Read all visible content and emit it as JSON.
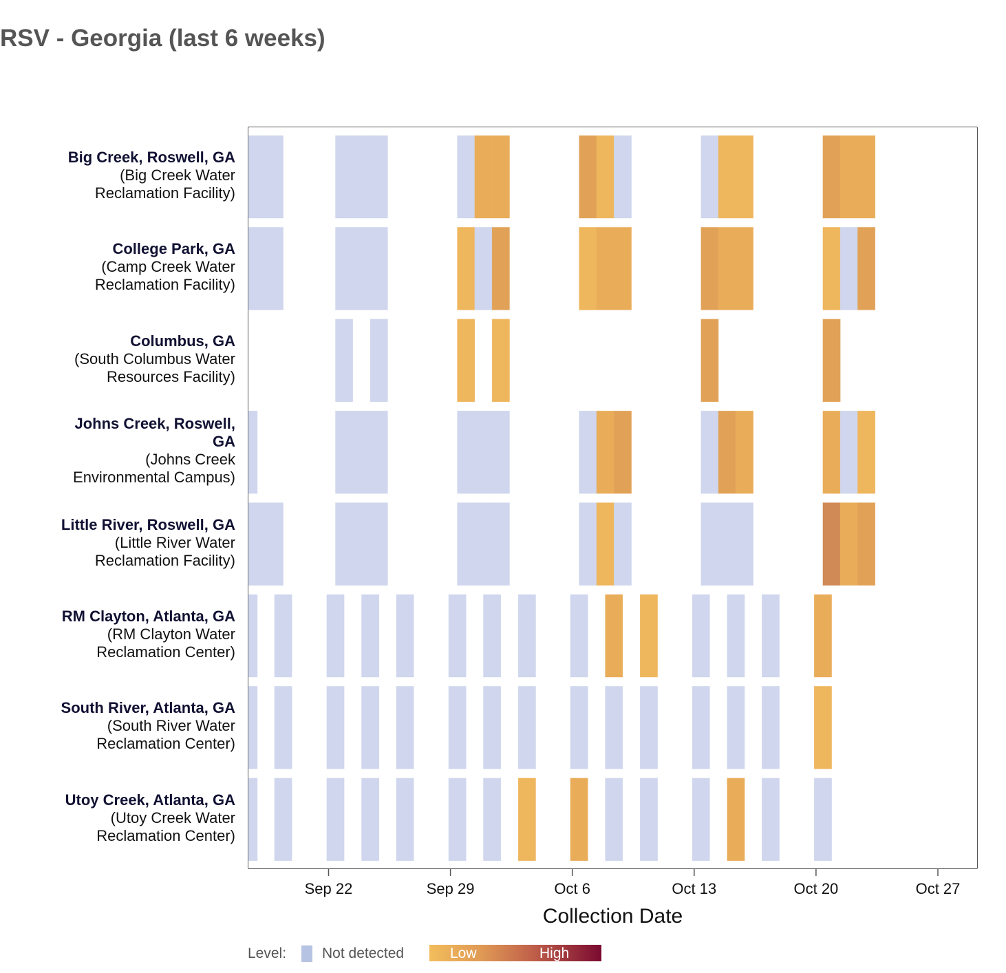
{
  "title": "RSV - Georgia (last 6 weeks)",
  "chart_data": {
    "type": "heatmap",
    "title": "RSV - Georgia (last 6 weeks)",
    "xlabel": "Collection Date",
    "x_range": [
      "Sep 17",
      "Oct 29"
    ],
    "x_ticks": [
      "Sep 22",
      "Sep 29",
      "Oct 6",
      "Oct 13",
      "Oct 20",
      "Oct 27"
    ],
    "level_colors": {
      "not_detected": "#cfd6ed",
      "low": "#eeb65d",
      "low_mid": "#e9ad5a",
      "mid": "#e1a258",
      "high_mid": "#cf8a55",
      "high": "#7a0a30"
    },
    "rows": [
      {
        "site": "Big Creek, Roswell, GA",
        "facility": "(Big Creek Water Reclamation Facility)",
        "facility_lines": [
          "(Big Creek Water",
          "Reclamation Facility)"
        ],
        "site_lines": [
          "Big Creek, Roswell, GA"
        ],
        "cells": [
          {
            "day": 0,
            "level": "not_detected"
          },
          {
            "day": 1,
            "level": "not_detected"
          },
          {
            "day": 5,
            "level": "not_detected"
          },
          {
            "day": 6,
            "level": "not_detected"
          },
          {
            "day": 7,
            "level": "not_detected"
          },
          {
            "day": 12,
            "level": "not_detected"
          },
          {
            "day": 13,
            "level": "low_mid"
          },
          {
            "day": 14,
            "level": "low_mid"
          },
          {
            "day": 19,
            "level": "mid"
          },
          {
            "day": 20,
            "level": "low"
          },
          {
            "day": 21,
            "level": "not_detected"
          },
          {
            "day": 26,
            "level": "not_detected"
          },
          {
            "day": 27,
            "level": "low"
          },
          {
            "day": 28,
            "level": "low"
          },
          {
            "day": 33,
            "level": "mid"
          },
          {
            "day": 34,
            "level": "low_mid"
          },
          {
            "day": 35,
            "level": "low_mid"
          }
        ]
      },
      {
        "site": "College Park, GA",
        "facility": "(Camp Creek Water Reclamation Facility)",
        "facility_lines": [
          "(Camp Creek Water",
          "Reclamation Facility)"
        ],
        "site_lines": [
          "College Park, GA"
        ],
        "cells": [
          {
            "day": 0,
            "level": "not_detected"
          },
          {
            "day": 1,
            "level": "not_detected"
          },
          {
            "day": 5,
            "level": "not_detected"
          },
          {
            "day": 6,
            "level": "not_detected"
          },
          {
            "day": 7,
            "level": "not_detected"
          },
          {
            "day": 12,
            "level": "low"
          },
          {
            "day": 13,
            "level": "not_detected"
          },
          {
            "day": 14,
            "level": "mid"
          },
          {
            "day": 19,
            "level": "low"
          },
          {
            "day": 20,
            "level": "low_mid"
          },
          {
            "day": 21,
            "level": "low_mid"
          },
          {
            "day": 26,
            "level": "mid"
          },
          {
            "day": 27,
            "level": "low_mid"
          },
          {
            "day": 28,
            "level": "low_mid"
          },
          {
            "day": 33,
            "level": "low"
          },
          {
            "day": 34,
            "level": "not_detected"
          },
          {
            "day": 35,
            "level": "mid"
          }
        ]
      },
      {
        "site": "Columbus, GA",
        "facility": "(South Columbus Water Resources Facility)",
        "facility_lines": [
          "(South Columbus Water",
          "Resources Facility)"
        ],
        "site_lines": [
          "Columbus, GA"
        ],
        "cells": [
          {
            "day": 5,
            "level": "not_detected"
          },
          {
            "day": 7,
            "level": "not_detected"
          },
          {
            "day": 12,
            "level": "low"
          },
          {
            "day": 14,
            "level": "low"
          },
          {
            "day": 26,
            "level": "mid"
          },
          {
            "day": 33,
            "level": "mid"
          }
        ]
      },
      {
        "site": "Johns Creek, Roswell, GA",
        "facility": "(Johns Creek Environmental Campus)",
        "facility_lines": [
          "(Johns Creek",
          "Environmental Campus)"
        ],
        "site_lines": [
          "Johns Creek, Roswell,",
          "GA"
        ],
        "cells": [
          {
            "day": 0,
            "level": "not_detected"
          },
          {
            "day": 5,
            "level": "not_detected"
          },
          {
            "day": 6,
            "level": "not_detected"
          },
          {
            "day": 7,
            "level": "not_detected"
          },
          {
            "day": 12,
            "level": "not_detected"
          },
          {
            "day": 13,
            "level": "not_detected"
          },
          {
            "day": 14,
            "level": "not_detected"
          },
          {
            "day": 19,
            "level": "not_detected"
          },
          {
            "day": 20,
            "level": "low_mid"
          },
          {
            "day": 21,
            "level": "mid"
          },
          {
            "day": 26,
            "level": "not_detected"
          },
          {
            "day": 27,
            "level": "mid"
          },
          {
            "day": 28,
            "level": "low_mid"
          },
          {
            "day": 33,
            "level": "low_mid"
          },
          {
            "day": 34,
            "level": "not_detected"
          },
          {
            "day": 35,
            "level": "low"
          }
        ]
      },
      {
        "site": "Little River, Roswell, GA",
        "facility": "(Little River Water Reclamation Facility)",
        "facility_lines": [
          "(Little River Water",
          "Reclamation Facility)"
        ],
        "site_lines": [
          "Little River, Roswell, GA"
        ],
        "cells": [
          {
            "day": 0,
            "level": "not_detected"
          },
          {
            "day": 1,
            "level": "not_detected"
          },
          {
            "day": 5,
            "level": "not_detected"
          },
          {
            "day": 6,
            "level": "not_detected"
          },
          {
            "day": 7,
            "level": "not_detected"
          },
          {
            "day": 12,
            "level": "not_detected"
          },
          {
            "day": 13,
            "level": "not_detected"
          },
          {
            "day": 14,
            "level": "not_detected"
          },
          {
            "day": 19,
            "level": "not_detected"
          },
          {
            "day": 20,
            "level": "low"
          },
          {
            "day": 21,
            "level": "not_detected"
          },
          {
            "day": 26,
            "level": "not_detected"
          },
          {
            "day": 27,
            "level": "not_detected"
          },
          {
            "day": 28,
            "level": "not_detected"
          },
          {
            "day": 33,
            "level": "high_mid"
          },
          {
            "day": 34,
            "level": "low_mid"
          },
          {
            "day": 35,
            "level": "mid"
          }
        ]
      },
      {
        "site": "RM Clayton, Atlanta, GA",
        "facility": "(RM Clayton Water Reclamation Center)",
        "facility_lines": [
          "(RM Clayton Water",
          "Reclamation Center)"
        ],
        "site_lines": [
          "RM Clayton, Atlanta, GA"
        ],
        "cells": [
          {
            "day": 0,
            "level": "not_detected"
          },
          {
            "day": 1.5,
            "level": "not_detected"
          },
          {
            "day": 4.5,
            "level": "not_detected"
          },
          {
            "day": 6.5,
            "level": "not_detected"
          },
          {
            "day": 8.5,
            "level": "not_detected"
          },
          {
            "day": 11.5,
            "level": "not_detected"
          },
          {
            "day": 13.5,
            "level": "not_detected"
          },
          {
            "day": 15.5,
            "level": "not_detected"
          },
          {
            "day": 18.5,
            "level": "not_detected"
          },
          {
            "day": 20.5,
            "level": "low_mid"
          },
          {
            "day": 22.5,
            "level": "low"
          },
          {
            "day": 25.5,
            "level": "not_detected"
          },
          {
            "day": 27.5,
            "level": "not_detected"
          },
          {
            "day": 29.5,
            "level": "not_detected"
          },
          {
            "day": 32.5,
            "level": "low_mid"
          }
        ]
      },
      {
        "site": "South River, Atlanta, GA",
        "facility": "(South River Water Reclamation Center)",
        "facility_lines": [
          "(South River Water",
          "Reclamation Center)"
        ],
        "site_lines": [
          "South River, Atlanta, GA"
        ],
        "cells": [
          {
            "day": 0,
            "level": "not_detected"
          },
          {
            "day": 1.5,
            "level": "not_detected"
          },
          {
            "day": 4.5,
            "level": "not_detected"
          },
          {
            "day": 6.5,
            "level": "not_detected"
          },
          {
            "day": 8.5,
            "level": "not_detected"
          },
          {
            "day": 11.5,
            "level": "not_detected"
          },
          {
            "day": 13.5,
            "level": "not_detected"
          },
          {
            "day": 15.5,
            "level": "not_detected"
          },
          {
            "day": 18.5,
            "level": "not_detected"
          },
          {
            "day": 20.5,
            "level": "not_detected"
          },
          {
            "day": 22.5,
            "level": "not_detected"
          },
          {
            "day": 25.5,
            "level": "not_detected"
          },
          {
            "day": 27.5,
            "level": "not_detected"
          },
          {
            "day": 29.5,
            "level": "not_detected"
          },
          {
            "day": 32.5,
            "level": "low"
          }
        ]
      },
      {
        "site": "Utoy Creek, Atlanta, GA",
        "facility": "(Utoy Creek Water Reclamation Center)",
        "facility_lines": [
          "(Utoy Creek Water",
          "Reclamation Center)"
        ],
        "site_lines": [
          "Utoy Creek, Atlanta, GA"
        ],
        "cells": [
          {
            "day": 0,
            "level": "not_detected"
          },
          {
            "day": 1.5,
            "level": "not_detected"
          },
          {
            "day": 4.5,
            "level": "not_detected"
          },
          {
            "day": 6.5,
            "level": "not_detected"
          },
          {
            "day": 8.5,
            "level": "not_detected"
          },
          {
            "day": 11.5,
            "level": "not_detected"
          },
          {
            "day": 13.5,
            "level": "not_detected"
          },
          {
            "day": 15.5,
            "level": "low"
          },
          {
            "day": 18.5,
            "level": "low_mid"
          },
          {
            "day": 20.5,
            "level": "not_detected"
          },
          {
            "day": 22.5,
            "level": "not_detected"
          },
          {
            "day": 25.5,
            "level": "not_detected"
          },
          {
            "day": 27.5,
            "level": "low_mid"
          },
          {
            "day": 29.5,
            "level": "not_detected"
          },
          {
            "day": 32.5,
            "level": "not_detected"
          }
        ]
      }
    ],
    "legend": {
      "label": "Level:",
      "not_detected": "Not detected",
      "low": "Low",
      "high": "High",
      "position": "bottom"
    }
  }
}
